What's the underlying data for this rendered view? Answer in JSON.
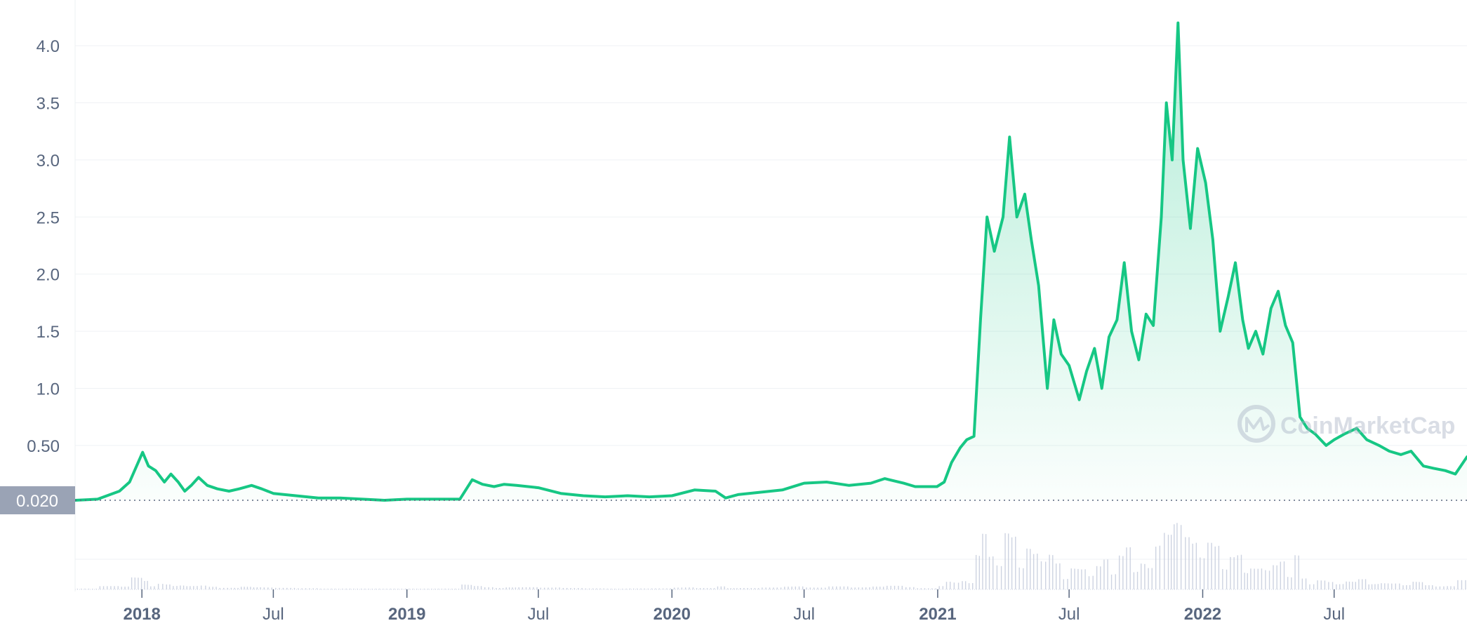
{
  "chart_data": {
    "type": "area",
    "title": "",
    "xlabel": "",
    "ylabel": "",
    "x_ticks": [
      {
        "label": "2018",
        "date": "2018-01-01",
        "bold": true
      },
      {
        "label": "Jul",
        "date": "2018-07-01",
        "bold": false
      },
      {
        "label": "2019",
        "date": "2019-01-01",
        "bold": true
      },
      {
        "label": "Jul",
        "date": "2019-07-01",
        "bold": false
      },
      {
        "label": "2020",
        "date": "2020-01-01",
        "bold": true
      },
      {
        "label": "Jul",
        "date": "2020-07-01",
        "bold": false
      },
      {
        "label": "2021",
        "date": "2021-01-01",
        "bold": true
      },
      {
        "label": "Jul",
        "date": "2021-07-01",
        "bold": false
      },
      {
        "label": "2022",
        "date": "2022-01-01",
        "bold": true
      },
      {
        "label": "Jul",
        "date": "2022-07-01",
        "bold": false
      }
    ],
    "y_ticks": [
      {
        "label": "0.50",
        "value": 0.5
      },
      {
        "label": "1.0",
        "value": 1.0
      },
      {
        "label": "1.5",
        "value": 1.5
      },
      {
        "label": "2.0",
        "value": 2.0
      },
      {
        "label": "2.5",
        "value": 2.5
      },
      {
        "label": "3.0",
        "value": 3.0
      },
      {
        "label": "3.5",
        "value": 3.5
      },
      {
        "label": "4.0",
        "value": 4.0
      }
    ],
    "xlim": [
      "2017-10-01",
      "2022-12-31"
    ],
    "ylim": [
      0.02,
      4.4
    ],
    "reference_line": {
      "label": "0.020",
      "value": 0.02
    },
    "grid": true,
    "line_color": "#16c784",
    "volume_color": "#c4cbdc",
    "watermark": "CoinMarketCap",
    "series": [
      {
        "values": [
          [
            "2017-10-01",
            0.02
          ],
          [
            "2017-11-01",
            0.03
          ],
          [
            "2017-12-01",
            0.1
          ],
          [
            "2017-12-15",
            0.18
          ],
          [
            "2018-01-02",
            0.44
          ],
          [
            "2018-01-10",
            0.32
          ],
          [
            "2018-01-20",
            0.28
          ],
          [
            "2018-02-01",
            0.18
          ],
          [
            "2018-02-10",
            0.25
          ],
          [
            "2018-02-20",
            0.18
          ],
          [
            "2018-03-01",
            0.1
          ],
          [
            "2018-03-10",
            0.15
          ],
          [
            "2018-03-20",
            0.22
          ],
          [
            "2018-04-01",
            0.15
          ],
          [
            "2018-04-15",
            0.12
          ],
          [
            "2018-05-01",
            0.1
          ],
          [
            "2018-05-15",
            0.12
          ],
          [
            "2018-06-01",
            0.15
          ],
          [
            "2018-06-15",
            0.12
          ],
          [
            "2018-07-01",
            0.08
          ],
          [
            "2018-08-01",
            0.06
          ],
          [
            "2018-09-01",
            0.04
          ],
          [
            "2018-10-01",
            0.04
          ],
          [
            "2018-11-01",
            0.03
          ],
          [
            "2018-12-01",
            0.02
          ],
          [
            "2019-01-01",
            0.03
          ],
          [
            "2019-02-01",
            0.03
          ],
          [
            "2019-03-15",
            0.03
          ],
          [
            "2019-04-01",
            0.2
          ],
          [
            "2019-04-15",
            0.16
          ],
          [
            "2019-05-01",
            0.14
          ],
          [
            "2019-05-15",
            0.16
          ],
          [
            "2019-06-01",
            0.15
          ],
          [
            "2019-07-01",
            0.13
          ],
          [
            "2019-08-01",
            0.08
          ],
          [
            "2019-09-01",
            0.06
          ],
          [
            "2019-10-01",
            0.05
          ],
          [
            "2019-11-01",
            0.06
          ],
          [
            "2019-12-01",
            0.05
          ],
          [
            "2020-01-01",
            0.06
          ],
          [
            "2020-02-01",
            0.11
          ],
          [
            "2020-03-01",
            0.1
          ],
          [
            "2020-03-15",
            0.04
          ],
          [
            "2020-04-01",
            0.07
          ],
          [
            "2020-05-01",
            0.09
          ],
          [
            "2020-06-01",
            0.11
          ],
          [
            "2020-07-01",
            0.17
          ],
          [
            "2020-08-01",
            0.18
          ],
          [
            "2020-09-01",
            0.15
          ],
          [
            "2020-10-01",
            0.17
          ],
          [
            "2020-10-20",
            0.21
          ],
          [
            "2020-11-15",
            0.17
          ],
          [
            "2020-12-01",
            0.14
          ],
          [
            "2020-12-31",
            0.14
          ],
          [
            "2021-01-10",
            0.18
          ],
          [
            "2021-01-20",
            0.35
          ],
          [
            "2021-02-01",
            0.48
          ],
          [
            "2021-02-10",
            0.55
          ],
          [
            "2021-02-20",
            0.58
          ],
          [
            "2021-03-01",
            1.6
          ],
          [
            "2021-03-10",
            2.5
          ],
          [
            "2021-03-20",
            2.2
          ],
          [
            "2021-04-01",
            2.5
          ],
          [
            "2021-04-10",
            3.2
          ],
          [
            "2021-04-20",
            2.5
          ],
          [
            "2021-05-01",
            2.7
          ],
          [
            "2021-05-10",
            2.3
          ],
          [
            "2021-05-20",
            1.9
          ],
          [
            "2021-06-01",
            1.0
          ],
          [
            "2021-06-10",
            1.6
          ],
          [
            "2021-06-20",
            1.3
          ],
          [
            "2021-07-01",
            1.2
          ],
          [
            "2021-07-15",
            0.9
          ],
          [
            "2021-07-25",
            1.15
          ],
          [
            "2021-08-05",
            1.35
          ],
          [
            "2021-08-15",
            1.0
          ],
          [
            "2021-08-25",
            1.45
          ],
          [
            "2021-09-05",
            1.6
          ],
          [
            "2021-09-15",
            2.1
          ],
          [
            "2021-09-25",
            1.5
          ],
          [
            "2021-10-05",
            1.25
          ],
          [
            "2021-10-15",
            1.65
          ],
          [
            "2021-10-25",
            1.55
          ],
          [
            "2021-11-05",
            2.5
          ],
          [
            "2021-11-12",
            3.5
          ],
          [
            "2021-11-20",
            3.0
          ],
          [
            "2021-11-28",
            4.2
          ],
          [
            "2021-12-05",
            3.0
          ],
          [
            "2021-12-15",
            2.4
          ],
          [
            "2021-12-25",
            3.1
          ],
          [
            "2022-01-05",
            2.8
          ],
          [
            "2022-01-15",
            2.3
          ],
          [
            "2022-01-25",
            1.5
          ],
          [
            "2022-02-05",
            1.8
          ],
          [
            "2022-02-15",
            2.1
          ],
          [
            "2022-02-25",
            1.6
          ],
          [
            "2022-03-05",
            1.35
          ],
          [
            "2022-03-15",
            1.5
          ],
          [
            "2022-03-25",
            1.3
          ],
          [
            "2022-04-05",
            1.7
          ],
          [
            "2022-04-15",
            1.85
          ],
          [
            "2022-04-25",
            1.55
          ],
          [
            "2022-05-05",
            1.4
          ],
          [
            "2022-05-15",
            0.75
          ],
          [
            "2022-05-25",
            0.65
          ],
          [
            "2022-06-05",
            0.6
          ],
          [
            "2022-06-20",
            0.5
          ],
          [
            "2022-07-01",
            0.55
          ],
          [
            "2022-07-15",
            0.6
          ],
          [
            "2022-08-01",
            0.65
          ],
          [
            "2022-08-15",
            0.55
          ],
          [
            "2022-09-01",
            0.5
          ],
          [
            "2022-09-15",
            0.45
          ],
          [
            "2022-10-01",
            0.42
          ],
          [
            "2022-10-15",
            0.45
          ],
          [
            "2022-11-01",
            0.32
          ],
          [
            "2022-11-15",
            0.3
          ],
          [
            "2022-12-01",
            0.28
          ],
          [
            "2022-12-15",
            0.25
          ],
          [
            "2022-12-31",
            0.4
          ]
        ]
      }
    ]
  }
}
